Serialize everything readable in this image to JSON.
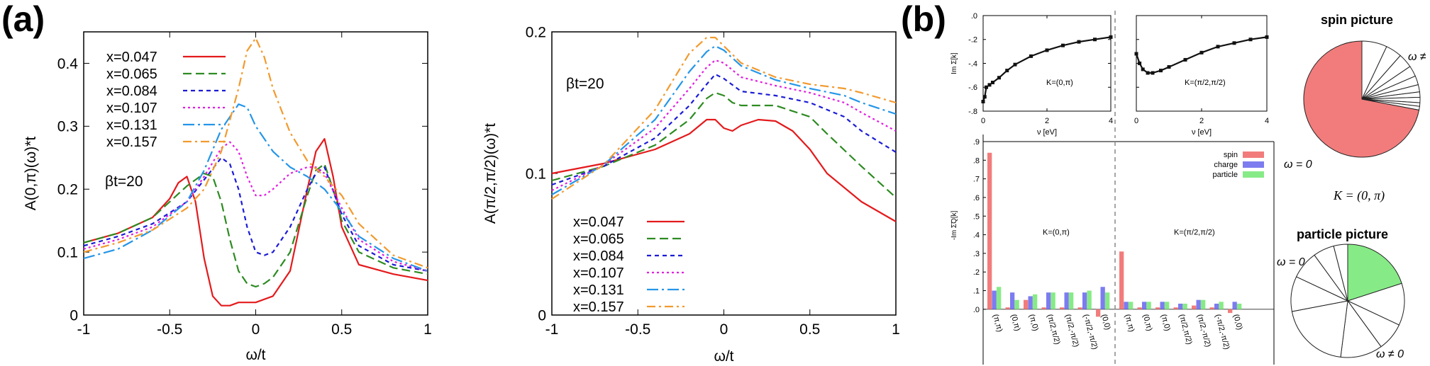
{
  "panels": {
    "a": "(a)",
    "b": "(b)"
  },
  "colors": {
    "red": "#e41a1c",
    "green": "#2e8b22",
    "blue": "#1c1cd6",
    "magenta": "#e11ee1",
    "cyan": "#2596e8",
    "orange": "#f29a2e"
  },
  "chart_data": [
    {
      "type": "line",
      "ylabel": "A(0,π)(ω)*t",
      "xlabel": "ω/t",
      "annotation": "βt=20",
      "xlim": [
        -1,
        1
      ],
      "ylim": [
        0,
        0.45
      ],
      "xticks": [
        "-1",
        "-0.5",
        "0",
        "0.5",
        "1"
      ],
      "yticks": [
        "0",
        "0.1",
        "0.2",
        "0.3",
        "0.4"
      ],
      "legend_position": "top-left",
      "series": [
        {
          "name": "x=0.047",
          "color": "#e41a1c",
          "dash": "",
          "x": [
            -1,
            -0.8,
            -0.6,
            -0.5,
            -0.45,
            -0.4,
            -0.35,
            -0.3,
            -0.25,
            -0.2,
            -0.15,
            -0.1,
            0,
            0.1,
            0.2,
            0.3,
            0.35,
            0.4,
            0.45,
            0.5,
            0.6,
            0.8,
            1
          ],
          "y": [
            0.115,
            0.13,
            0.155,
            0.185,
            0.21,
            0.22,
            0.18,
            0.09,
            0.03,
            0.015,
            0.015,
            0.02,
            0.02,
            0.03,
            0.07,
            0.2,
            0.26,
            0.28,
            0.22,
            0.14,
            0.08,
            0.065,
            0.055
          ]
        },
        {
          "name": "x=0.065",
          "color": "#2e8b22",
          "dash": "12,6",
          "x": [
            -1,
            -0.8,
            -0.6,
            -0.5,
            -0.4,
            -0.3,
            -0.25,
            -0.2,
            -0.15,
            -0.1,
            -0.05,
            0,
            0.05,
            0.1,
            0.2,
            0.3,
            0.35,
            0.4,
            0.45,
            0.5,
            0.6,
            0.8,
            1
          ],
          "y": [
            0.115,
            0.13,
            0.155,
            0.18,
            0.205,
            0.225,
            0.22,
            0.18,
            0.12,
            0.07,
            0.05,
            0.045,
            0.05,
            0.06,
            0.1,
            0.19,
            0.23,
            0.24,
            0.2,
            0.15,
            0.1,
            0.075,
            0.065
          ]
        },
        {
          "name": "x=0.084",
          "color": "#1c1cd6",
          "dash": "6,5",
          "x": [
            -1,
            -0.8,
            -0.6,
            -0.4,
            -0.3,
            -0.2,
            -0.15,
            -0.1,
            -0.05,
            0,
            0.05,
            0.1,
            0.2,
            0.3,
            0.35,
            0.4,
            0.5,
            0.6,
            0.8,
            1
          ],
          "y": [
            0.11,
            0.125,
            0.145,
            0.18,
            0.215,
            0.25,
            0.24,
            0.2,
            0.14,
            0.1,
            0.095,
            0.1,
            0.14,
            0.2,
            0.225,
            0.235,
            0.16,
            0.11,
            0.08,
            0.07
          ]
        },
        {
          "name": "x=0.107",
          "color": "#e11ee1",
          "dash": "3,4",
          "x": [
            -1,
            -0.8,
            -0.6,
            -0.4,
            -0.3,
            -0.2,
            -0.15,
            -0.1,
            -0.05,
            0,
            0.05,
            0.1,
            0.2,
            0.3,
            0.35,
            0.4,
            0.5,
            0.6,
            0.8,
            1
          ],
          "y": [
            0.105,
            0.12,
            0.14,
            0.18,
            0.22,
            0.265,
            0.275,
            0.26,
            0.22,
            0.19,
            0.19,
            0.2,
            0.225,
            0.235,
            0.235,
            0.225,
            0.17,
            0.12,
            0.085,
            0.07
          ]
        },
        {
          "name": "x=0.131",
          "color": "#2596e8",
          "dash": "16,5,3,5",
          "x": [
            -1,
            -0.8,
            -0.6,
            -0.4,
            -0.3,
            -0.2,
            -0.1,
            -0.05,
            0,
            0.1,
            0.2,
            0.3,
            0.4,
            0.5,
            0.6,
            0.8,
            1
          ],
          "y": [
            0.09,
            0.105,
            0.135,
            0.18,
            0.23,
            0.295,
            0.335,
            0.33,
            0.3,
            0.26,
            0.235,
            0.22,
            0.2,
            0.165,
            0.125,
            0.09,
            0.07
          ]
        },
        {
          "name": "x=0.157",
          "color": "#f29a2e",
          "dash": "12,5,3,5",
          "x": [
            -1,
            -0.8,
            -0.6,
            -0.4,
            -0.3,
            -0.2,
            -0.1,
            -0.05,
            0,
            0.05,
            0.1,
            0.2,
            0.3,
            0.4,
            0.5,
            0.6,
            0.8,
            1
          ],
          "y": [
            0.1,
            0.115,
            0.135,
            0.17,
            0.2,
            0.26,
            0.36,
            0.42,
            0.44,
            0.41,
            0.36,
            0.29,
            0.245,
            0.22,
            0.19,
            0.145,
            0.095,
            0.075
          ]
        }
      ]
    },
    {
      "type": "line",
      "ylabel": "A(π/2,π/2)(ω)*t",
      "xlabel": "ω/t",
      "annotation": "βt=20",
      "xlim": [
        -1,
        1
      ],
      "ylim": [
        0,
        0.2
      ],
      "xticks": [
        "-1",
        "-0.5",
        "0",
        "0.5",
        "1"
      ],
      "yticks": [
        "0",
        "0.1",
        "0.2"
      ],
      "legend_position": "bottom-left",
      "series": [
        {
          "name": "x=0.047",
          "color": "#e41a1c",
          "dash": "",
          "x": [
            -1,
            -0.7,
            -0.4,
            -0.2,
            -0.1,
            -0.05,
            0,
            0.05,
            0.1,
            0.2,
            0.3,
            0.4,
            0.5,
            0.6,
            0.8,
            1
          ],
          "y": [
            0.1,
            0.107,
            0.117,
            0.128,
            0.138,
            0.138,
            0.132,
            0.13,
            0.134,
            0.138,
            0.137,
            0.13,
            0.117,
            0.1,
            0.08,
            0.066
          ]
        },
        {
          "name": "x=0.065",
          "color": "#2e8b22",
          "dash": "12,6",
          "x": [
            -1,
            -0.7,
            -0.4,
            -0.2,
            -0.1,
            -0.05,
            0,
            0.05,
            0.1,
            0.3,
            0.5,
            0.6,
            0.8,
            1
          ],
          "y": [
            0.095,
            0.105,
            0.12,
            0.138,
            0.153,
            0.157,
            0.155,
            0.15,
            0.148,
            0.148,
            0.14,
            0.128,
            0.105,
            0.083
          ]
        },
        {
          "name": "x=0.084",
          "color": "#1c1cd6",
          "dash": "6,5",
          "x": [
            -1,
            -0.7,
            -0.4,
            -0.2,
            -0.1,
            -0.05,
            0,
            0.1,
            0.3,
            0.5,
            0.7,
            0.8,
            1
          ],
          "y": [
            0.092,
            0.105,
            0.125,
            0.148,
            0.163,
            0.17,
            0.167,
            0.158,
            0.155,
            0.15,
            0.14,
            0.13,
            0.115
          ]
        },
        {
          "name": "x=0.107",
          "color": "#e11ee1",
          "dash": "3,4",
          "x": [
            -1,
            -0.7,
            -0.4,
            -0.2,
            -0.1,
            -0.05,
            0,
            0.1,
            0.3,
            0.5,
            0.7,
            0.8,
            1
          ],
          "y": [
            0.088,
            0.106,
            0.132,
            0.16,
            0.175,
            0.18,
            0.178,
            0.168,
            0.162,
            0.157,
            0.15,
            0.143,
            0.13
          ]
        },
        {
          "name": "x=0.131",
          "color": "#2596e8",
          "dash": "16,5,3,5",
          "x": [
            -1,
            -0.7,
            -0.4,
            -0.2,
            -0.1,
            -0.05,
            0,
            0.1,
            0.3,
            0.5,
            0.7,
            0.8,
            1
          ],
          "y": [
            0.085,
            0.106,
            0.138,
            0.172,
            0.186,
            0.19,
            0.187,
            0.176,
            0.166,
            0.16,
            0.155,
            0.15,
            0.142
          ]
        },
        {
          "name": "x=0.157",
          "color": "#f29a2e",
          "dash": "12,5,3,5",
          "x": [
            -1,
            -0.7,
            -0.4,
            -0.2,
            -0.1,
            -0.05,
            0,
            0.1,
            0.3,
            0.5,
            0.7,
            0.8,
            1
          ],
          "y": [
            0.082,
            0.106,
            0.145,
            0.185,
            0.196,
            0.196,
            0.19,
            0.178,
            0.168,
            0.163,
            0.16,
            0.157,
            0.15
          ]
        }
      ]
    },
    {
      "type": "line",
      "ylabel": "Im Σ[k]",
      "xlabel": "ν [eV]",
      "annotation": "K=(0,π)",
      "xlim": [
        0,
        4
      ],
      "ylim": [
        -0.8,
        0
      ],
      "xticks": [
        "0",
        "2",
        "4"
      ],
      "yticks": [
        ".0",
        "-.2",
        "-.4",
        "-.6",
        "-.8"
      ],
      "series": [
        {
          "name": "",
          "color": "#111111",
          "x": [
            0,
            0.05,
            0.1,
            0.2,
            0.3,
            0.5,
            0.75,
            1,
            1.5,
            2,
            2.5,
            3,
            3.5,
            4
          ],
          "y": [
            -0.72,
            -0.68,
            -0.6,
            -0.58,
            -0.56,
            -0.52,
            -0.46,
            -0.41,
            -0.34,
            -0.29,
            -0.25,
            -0.22,
            -0.2,
            -0.18
          ]
        }
      ]
    },
    {
      "type": "line",
      "ylabel": "",
      "xlabel": "ν [eV]",
      "annotation": "K=(π/2,π/2)",
      "xlim": [
        0,
        4
      ],
      "ylim": [
        -0.8,
        0
      ],
      "xticks": [
        "0",
        "2",
        "4"
      ],
      "yticks": [],
      "series": [
        {
          "name": "",
          "color": "#111111",
          "x": [
            0,
            0.1,
            0.2,
            0.35,
            0.5,
            0.75,
            1,
            1.5,
            2,
            2.5,
            3,
            3.5,
            4
          ],
          "y": [
            -0.32,
            -0.4,
            -0.45,
            -0.48,
            -0.48,
            -0.46,
            -0.43,
            -0.37,
            -0.31,
            -0.26,
            -0.23,
            -0.2,
            -0.18
          ]
        }
      ]
    },
    {
      "type": "bar",
      "ylabel": "-Im Σ̃Q[k]",
      "ylim": [
        -0.05,
        0.9
      ],
      "yticks": [
        ".9",
        ".8",
        ".7",
        ".6",
        ".5",
        ".4",
        ".3",
        ".2",
        ".1",
        ".0"
      ],
      "annotations": [
        "K=(0,π)",
        "K=(π/2,π/2)"
      ],
      "legend_position": "top-right",
      "series_names": [
        "spin",
        "charge",
        "particle"
      ],
      "series_colors": [
        "#f27c7c",
        "#7c7cf0",
        "#86eb86"
      ],
      "groups": [
        {
          "categories": [
            "(π,π)",
            "(0,π)",
            "(π,0)",
            "(π/2,π/2)",
            "(π/2,-π/2)",
            "(-π/2,-π/2)",
            "(0,0)"
          ],
          "spin": [
            0.84,
            0.01,
            0.05,
            0.01,
            0.01,
            0.01,
            -0.04
          ],
          "charge": [
            0.1,
            0.09,
            0.07,
            0.09,
            0.09,
            0.09,
            0.12
          ],
          "particle": [
            0.12,
            0.05,
            0.08,
            0.09,
            0.09,
            0.1,
            0.09
          ]
        },
        {
          "categories": [
            "(π,π)",
            "(0,π)",
            "(π,0)",
            "(π/2,π/2)",
            "(π/2,-π/2)",
            "(-π/2,-π/2)",
            "(0,0)"
          ],
          "spin": [
            0.31,
            0.01,
            0.01,
            0.01,
            0.02,
            0.01,
            -0.02
          ],
          "charge": [
            0.04,
            0.04,
            0.04,
            0.03,
            0.05,
            0.03,
            0.04
          ],
          "particle": [
            0.04,
            0.04,
            0.04,
            0.03,
            0.05,
            0.04,
            0.03
          ]
        }
      ]
    },
    {
      "type": "pie",
      "title": "spin picture",
      "labels": {
        "small": "ω ≠ 0",
        "big": "ω = 0"
      },
      "highlight_color": "#f27c7c",
      "values": [
        0.72,
        0.07,
        0.045,
        0.04,
        0.03,
        0.025,
        0.02,
        0.015,
        0.015,
        0.01,
        0.01
      ]
    },
    {
      "type": "pie",
      "title": "particle picture",
      "labels": {
        "big": "ω = 0",
        "small": "ω ≠ 0"
      },
      "highlight_color": "#86eb86",
      "values": [
        0.2,
        0.12,
        0.08,
        0.12,
        0.2,
        0.1,
        0.08,
        0.06,
        0.04
      ]
    }
  ],
  "k_label": "K = (0, π)"
}
